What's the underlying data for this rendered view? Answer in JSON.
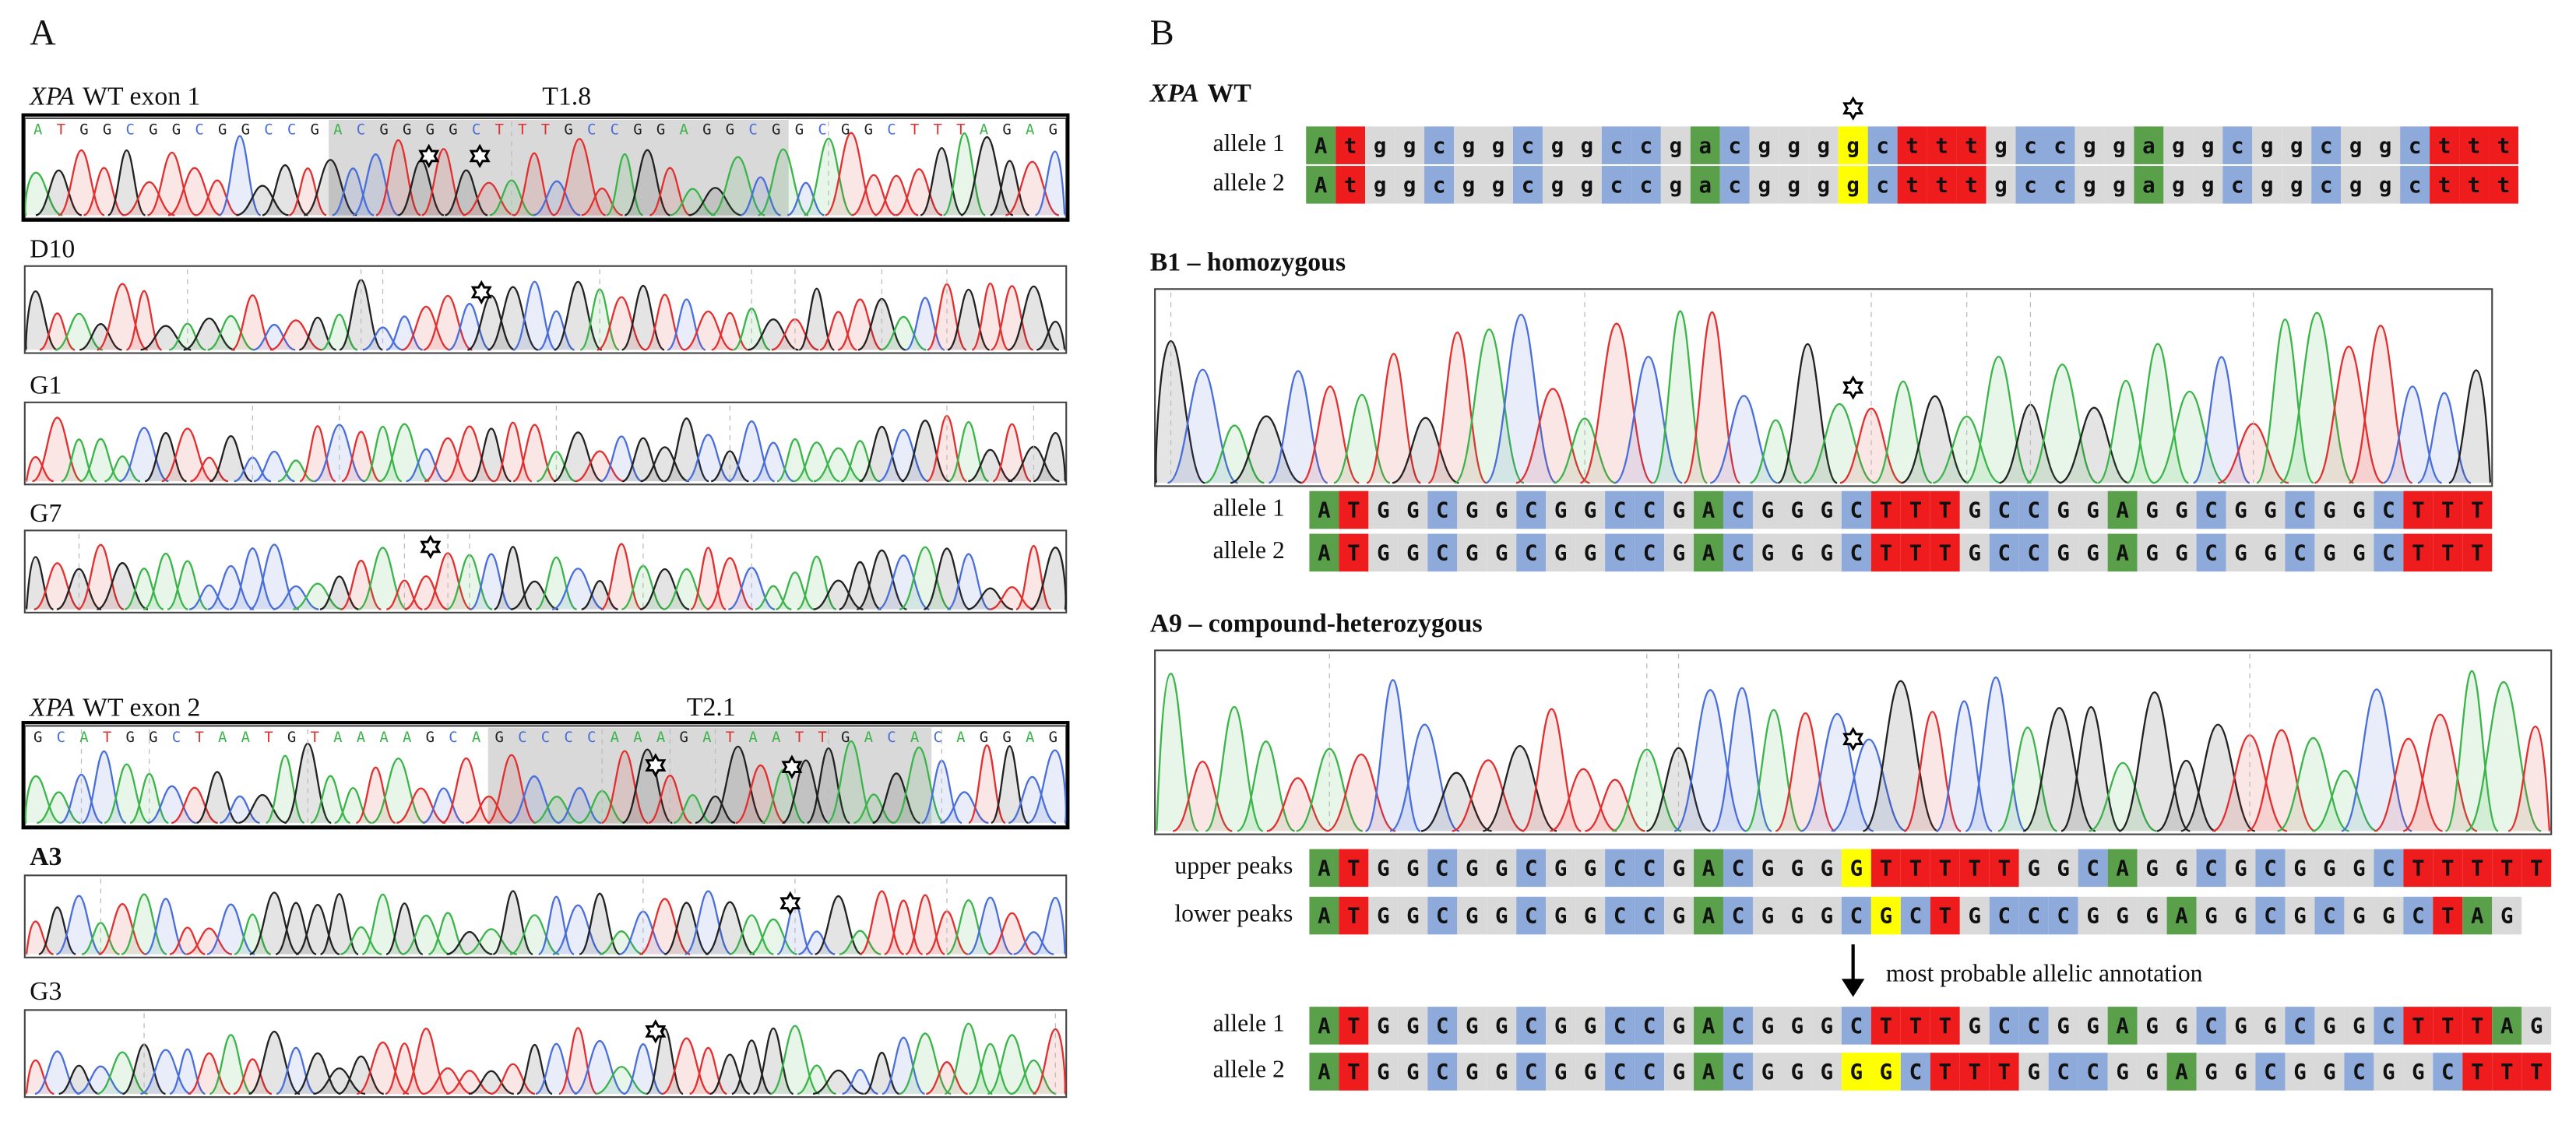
{
  "colors": {
    "A": "#5aa04a",
    "T": "#ee1c1c",
    "G": "#d9d9d9",
    "C": "#8eaadb",
    "highlight": "#ffff00"
  },
  "panel_a": {
    "label": "A",
    "exon1": {
      "gene": "XPA",
      "title": "WT exon 1",
      "target": "T1.8",
      "sequence": "ATGGCGGCGGCCGACGGGGCTTTGCCGGAGGCGGCGGCTTTAGAG"
    },
    "clones1": [
      "D10",
      "G1",
      "G7"
    ],
    "exon2": {
      "gene": "XPA",
      "title": "WT exon 2",
      "target": "T2.1",
      "sequence": "GCATGGCTAATGTAAAAGCAGCCCCAAAGATAATTGACACAGGAG"
    },
    "clones2": [
      "A3",
      "G3"
    ]
  },
  "panel_b": {
    "label": "B",
    "wt": {
      "gene": "XPA",
      "title": "WT",
      "rows": [
        {
          "name": "allele 1",
          "highlight": [
            18
          ],
          "bases": [
            "A",
            "t",
            "g",
            "g",
            "c",
            "g",
            "g",
            "c",
            "g",
            "g",
            "c",
            "c",
            "g",
            "a",
            "c",
            "g",
            "g",
            "g",
            "g",
            "c",
            "t",
            "t",
            "t",
            "g",
            "c",
            "c",
            "g",
            "g",
            "a",
            "g",
            "g",
            "c",
            "g",
            "g",
            "c",
            "g",
            "g",
            "c",
            "t",
            "t",
            "t"
          ]
        },
        {
          "name": "allele 2",
          "highlight": [
            18
          ],
          "bases": [
            "A",
            "t",
            "g",
            "g",
            "c",
            "g",
            "g",
            "c",
            "g",
            "g",
            "c",
            "c",
            "g",
            "a",
            "c",
            "g",
            "g",
            "g",
            "g",
            "c",
            "t",
            "t",
            "t",
            "g",
            "c",
            "c",
            "g",
            "g",
            "a",
            "g",
            "g",
            "c",
            "g",
            "g",
            "c",
            "g",
            "g",
            "c",
            "t",
            "t",
            "t"
          ]
        }
      ]
    },
    "b1": {
      "title": "B1 – homozygous",
      "rows": [
        {
          "name": "allele 1",
          "highlight": [],
          "bases": [
            "A",
            "T",
            "G",
            "G",
            "C",
            "G",
            "G",
            "C",
            "G",
            "G",
            "C",
            "C",
            "G",
            "A",
            "C",
            "G",
            "G",
            "G",
            "C",
            "T",
            "T",
            "T",
            "G",
            "C",
            "C",
            "G",
            "G",
            "A",
            "G",
            "G",
            "C",
            "G",
            "G",
            "C",
            "G",
            "G",
            "C",
            "T",
            "T",
            "T"
          ]
        },
        {
          "name": "allele 2",
          "highlight": [],
          "bases": [
            "A",
            "T",
            "G",
            "G",
            "C",
            "G",
            "G",
            "C",
            "G",
            "G",
            "C",
            "C",
            "G",
            "A",
            "C",
            "G",
            "G",
            "G",
            "C",
            "T",
            "T",
            "T",
            "G",
            "C",
            "C",
            "G",
            "G",
            "A",
            "G",
            "G",
            "C",
            "G",
            "G",
            "C",
            "G",
            "G",
            "C",
            "T",
            "T",
            "T"
          ]
        }
      ]
    },
    "a9": {
      "title": "A9 – compound-heterozygous",
      "annotation": "most probable allelic annotation",
      "rows": [
        {
          "name": "upper peaks",
          "highlight": [
            18
          ],
          "bases": [
            "A",
            "T",
            "G",
            "G",
            "C",
            "G",
            "G",
            "C",
            "G",
            "G",
            "C",
            "C",
            "G",
            "A",
            "C",
            "G",
            "G",
            "G",
            "G",
            "T",
            "T",
            "T",
            "T",
            "T",
            "G",
            "G",
            "C",
            "A",
            "G",
            "G",
            "C",
            "G",
            "C",
            "G",
            "G",
            "G",
            "C",
            "T",
            "T",
            "T",
            "T",
            "T"
          ]
        },
        {
          "name": "lower peaks",
          "highlight": [
            19
          ],
          "bases": [
            "A",
            "T",
            "G",
            "G",
            "C",
            "G",
            "G",
            "C",
            "G",
            "G",
            "C",
            "C",
            "G",
            "A",
            "C",
            "G",
            "G",
            "G",
            "C",
            "G",
            "C",
            "T",
            "G",
            "C",
            "C",
            "C",
            "G",
            "G",
            "G",
            "A",
            "G",
            "G",
            "C",
            "G",
            "C",
            "G",
            "G",
            "C",
            "T",
            "A",
            "G"
          ]
        }
      ],
      "alleles": [
        {
          "name": "allele 1",
          "highlight": [],
          "bases": [
            "A",
            "T",
            "G",
            "G",
            "C",
            "G",
            "G",
            "C",
            "G",
            "G",
            "C",
            "C",
            "G",
            "A",
            "C",
            "G",
            "G",
            "G",
            "C",
            "T",
            "T",
            "T",
            "G",
            "C",
            "C",
            "G",
            "G",
            "A",
            "G",
            "G",
            "C",
            "G",
            "G",
            "C",
            "G",
            "G",
            "C",
            "T",
            "T",
            "T",
            "A",
            "G"
          ]
        },
        {
          "name": "allele 2",
          "highlight": [
            18,
            19
          ],
          "bases": [
            "A",
            "T",
            "G",
            "G",
            "C",
            "G",
            "G",
            "C",
            "G",
            "G",
            "C",
            "C",
            "G",
            "A",
            "C",
            "G",
            "G",
            "G",
            "G",
            "G",
            "C",
            "T",
            "T",
            "T",
            "G",
            "C",
            "C",
            "G",
            "G",
            "A",
            "G",
            "G",
            "C",
            "G",
            "G",
            "C",
            "G",
            "G",
            "C",
            "T",
            "T",
            "T"
          ]
        }
      ]
    }
  }
}
